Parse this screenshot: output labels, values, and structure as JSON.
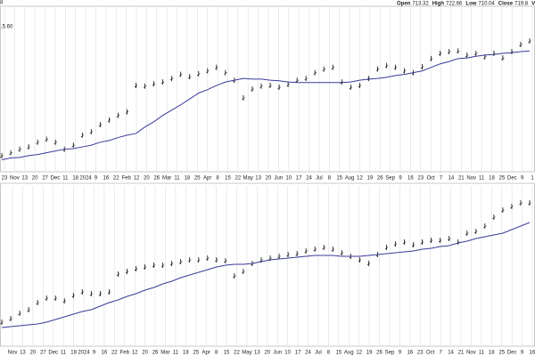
{
  "chart_data": [
    {
      "type": "ohlc",
      "header": [
        {
          "label": "Open",
          "value": 713.32
        },
        {
          "label": "High",
          "value": 722.66
        },
        {
          "label": "Low",
          "value": 710.04
        },
        {
          "label": "Close",
          "value": 719.8
        },
        {
          "label": "Volum"
        }
      ],
      "annotations": [
        "8",
        ",5.60"
      ],
      "x_labels": [
        "23",
        "Nov",
        "13",
        "20",
        "27",
        "Dec",
        "11",
        "18",
        "2024",
        "9",
        "16",
        "22",
        "Feb",
        "12",
        "20",
        "26",
        "Mar",
        "11",
        "18",
        "25",
        "Apr",
        "8",
        "15",
        "22",
        "May",
        "13",
        "20",
        "Jun",
        "10",
        "17",
        "24",
        "Jul",
        "8",
        "15",
        "Aug",
        "12",
        "19",
        "26",
        "Sep",
        "9",
        "16",
        "23",
        "Oct",
        "7",
        "14",
        "21",
        "Nov",
        "11",
        "18",
        "25",
        "Dec",
        "9",
        "1"
      ],
      "ylim": [
        480,
        760
      ],
      "grid": true,
      "color": "#111111",
      "values": [
        506,
        511,
        517,
        521,
        529,
        534,
        529,
        517,
        524,
        541,
        547,
        559,
        567,
        575,
        581,
        626,
        625,
        629,
        632,
        638,
        645,
        641,
        646,
        651,
        657,
        648,
        635,
        605,
        620,
        625,
        626,
        623,
        628,
        635,
        638,
        648,
        654,
        657,
        632,
        623,
        626,
        638,
        654,
        660,
        657,
        651,
        648,
        658,
        672,
        681,
        684,
        685,
        678,
        681,
        675,
        681,
        673,
        684,
        696,
        702
      ],
      "average": {
        "color": "#3a3a9a",
        "values": [
          499,
          502,
          503,
          506,
          508,
          511,
          514,
          517,
          518,
          521,
          524,
          529,
          532,
          537,
          541,
          544,
          555,
          564,
          575,
          584,
          593,
          603,
          613,
          619,
          626,
          632,
          635,
          638,
          637,
          637,
          635,
          634,
          632,
          631,
          631,
          631,
          631,
          631,
          631,
          632,
          635,
          637,
          638,
          640,
          643,
          645,
          648,
          651,
          657,
          663,
          667,
          672,
          673,
          676,
          678,
          679,
          681,
          682,
          684,
          685
        ]
      }
    },
    {
      "type": "ohlc",
      "x_labels": [
        "Nov",
        "13",
        "20",
        "27",
        "Dec",
        "11",
        "18",
        "2024",
        "9",
        "16",
        "22",
        "Feb",
        "12",
        "20",
        "26",
        "Mar",
        "11",
        "18",
        "25",
        "Apr",
        "8",
        "15",
        "22",
        "May",
        "13",
        "20",
        "Jun",
        "10",
        "17",
        "24",
        "Jul",
        "8",
        "15",
        "Aug",
        "12",
        "19",
        "26",
        "Sep",
        "9",
        "16",
        "23",
        "Oct",
        "7",
        "14",
        "21",
        "Nov",
        "11",
        "18",
        "25",
        "Dec",
        "9",
        "16"
      ],
      "ylim": [
        10,
        170
      ],
      "grid": true,
      "color": "#111111",
      "values": [
        18,
        22,
        28,
        32,
        40,
        45,
        45,
        42,
        48,
        52,
        50,
        50,
        52,
        72,
        75,
        78,
        80,
        82,
        82,
        84,
        86,
        88,
        88,
        90,
        88,
        87,
        70,
        75,
        84,
        88,
        90,
        92,
        94,
        95,
        98,
        100,
        102,
        100,
        96,
        92,
        88,
        84,
        94,
        102,
        106,
        108,
        105,
        108,
        110,
        110,
        112,
        108,
        118,
        120,
        126,
        136,
        144,
        148,
        152,
        152
      ],
      "average": {
        "color": "#3a3a9a",
        "values": [
          12,
          13,
          14,
          15,
          16,
          18,
          21,
          24,
          27,
          30,
          32,
          36,
          40,
          43,
          47,
          50,
          54,
          57,
          61,
          64,
          68,
          71,
          74,
          77,
          80,
          82,
          83,
          83,
          84,
          86,
          88,
          89,
          90,
          91,
          92,
          93,
          93,
          93,
          92,
          92,
          92,
          93,
          94,
          95,
          96,
          97,
          98,
          100,
          101,
          103,
          104,
          107,
          109,
          112,
          114,
          116,
          118,
          122,
          126,
          130
        ]
      }
    }
  ]
}
